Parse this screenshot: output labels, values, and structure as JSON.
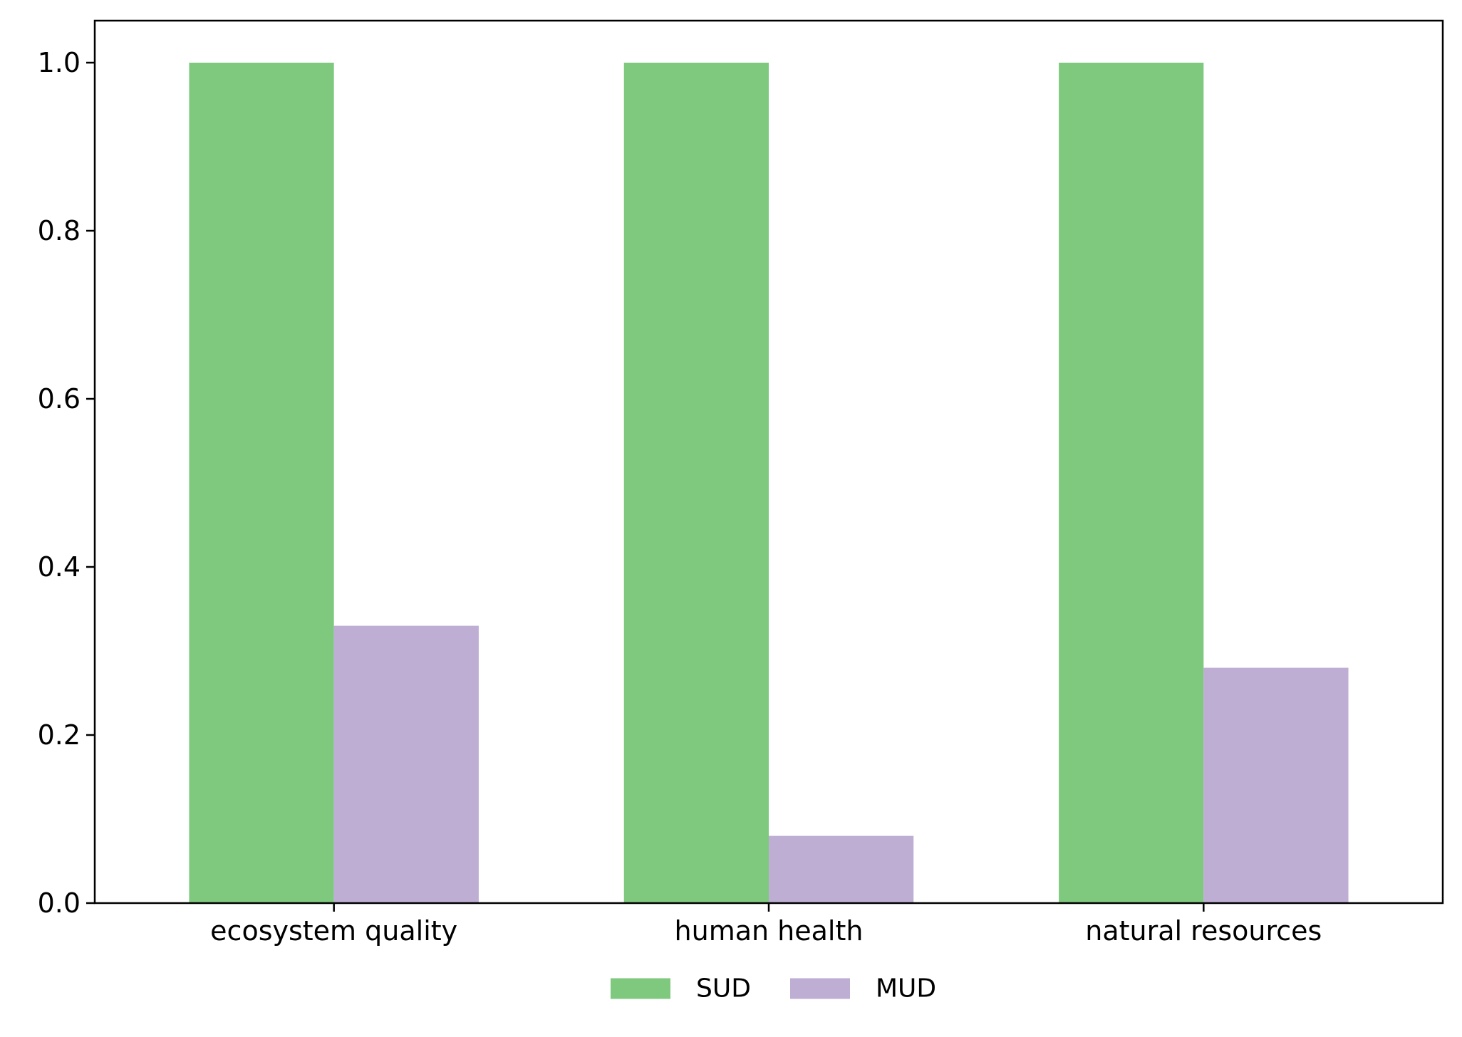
{
  "chart_data": {
    "type": "bar",
    "categories": [
      "ecosystem quality",
      "human health",
      "natural resources"
    ],
    "series": [
      {
        "name": "SUD",
        "values": [
          1.0,
          1.0,
          1.0
        ],
        "color": "#7fc97f"
      },
      {
        "name": "MUD",
        "values": [
          0.33,
          0.08,
          0.28
        ],
        "color": "#beaed4"
      }
    ],
    "title": "",
    "xlabel": "",
    "ylabel": "",
    "ylim": [
      0,
      1.05
    ],
    "yticks": [
      0.0,
      0.2,
      0.4,
      0.6,
      0.8,
      1.0
    ],
    "ytick_labels": [
      "0.0",
      "0.2",
      "0.4",
      "0.6",
      "0.8",
      "1.0"
    ],
    "grid": false,
    "legend": {
      "position": "bottom-center",
      "columns": 2
    }
  }
}
